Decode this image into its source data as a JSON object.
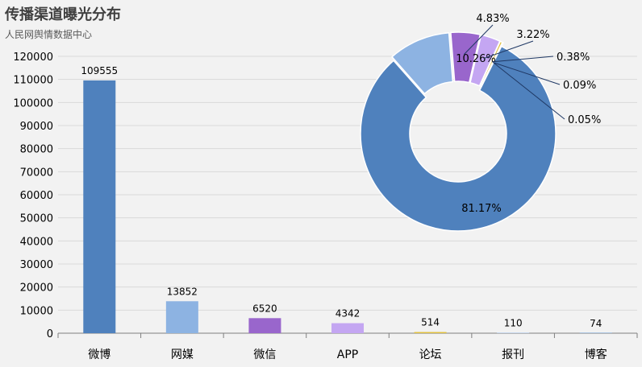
{
  "title": "传播渠道曝光分布",
  "subtitle": "人民网舆情数据中心",
  "chart_data": [
    {
      "type": "bar",
      "categories": [
        "微博",
        "网媒",
        "微信",
        "APP",
        "论坛",
        "报刊",
        "博客"
      ],
      "values": [
        109555,
        13852,
        6520,
        4342,
        514,
        110,
        74
      ],
      "colors": [
        "#4f81bd",
        "#8db3e2",
        "#9966cc",
        "#c4a6f2",
        "#e0c040",
        "#a9c5ea",
        "#7aa6d6"
      ],
      "ylim": [
        0,
        120000
      ],
      "yticks": [
        "0",
        "10000",
        "20000",
        "30000",
        "40000",
        "50000",
        "60000",
        "70000",
        "80000",
        "90000",
        "100000",
        "110000",
        "120000"
      ],
      "grid": true,
      "value_labels": [
        "109555",
        "13852",
        "6520",
        "4342",
        "514",
        "110",
        "74"
      ]
    },
    {
      "type": "pie",
      "style": "donut",
      "values": [
        81.17,
        10.26,
        4.83,
        3.22,
        0.38,
        0.09,
        0.05
      ],
      "labels": [
        "81.17%",
        "10.26%",
        "4.83%",
        "3.22%",
        "0.38%",
        "0.09%",
        "0.05%"
      ],
      "colors": [
        "#4f81bd",
        "#8db3e2",
        "#9966cc",
        "#c4a6f2",
        "#e0c040",
        "#a9c5ea",
        "#7aa6d6"
      ]
    }
  ]
}
